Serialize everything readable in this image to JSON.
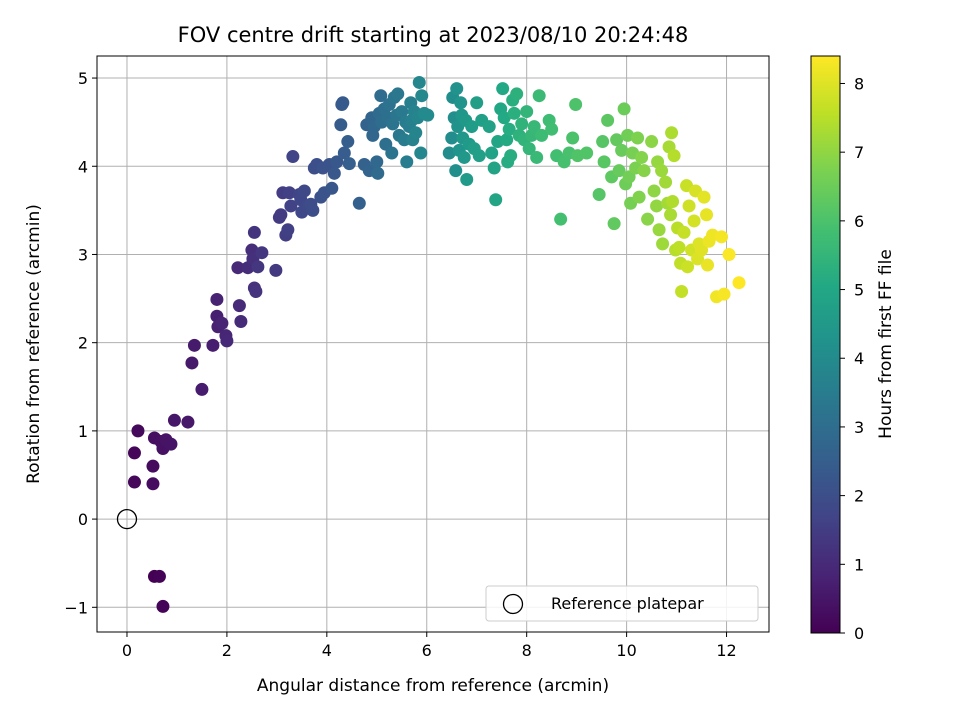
{
  "chart_data": {
    "type": "scatter",
    "title": "FOV centre drift starting at 2023/08/10 20:24:48",
    "xlabel": "Angular distance from reference (arcmin)",
    "ylabel": "Rotation from reference (arcmin)",
    "xlim": [
      -0.6,
      12.85
    ],
    "ylim": [
      -1.28,
      5.25
    ],
    "xticks": [
      0,
      2,
      4,
      6,
      8,
      10,
      12
    ],
    "xtick_labels": [
      "0",
      "2",
      "4",
      "6",
      "8",
      "10",
      "12"
    ],
    "yticks": [
      -1,
      0,
      1,
      2,
      3,
      4,
      5
    ],
    "ytick_labels": [
      "−1",
      "0",
      "1",
      "2",
      "3",
      "4",
      "5"
    ],
    "grid": true,
    "colormap": "viridis",
    "colorbar": {
      "label": "Hours from first FF file",
      "range": [
        0,
        8.4
      ],
      "ticks": [
        0,
        1,
        2,
        3,
        4,
        5,
        6,
        7,
        8
      ],
      "tick_labels": [
        "0",
        "1",
        "2",
        "3",
        "4",
        "5",
        "6",
        "7",
        "8"
      ]
    },
    "legend": {
      "position": "lower-right",
      "entries": [
        {
          "label": "Reference platepar",
          "marker": "open-circle",
          "x": 0,
          "y": 0
        }
      ]
    },
    "points": [
      [
        0.55,
        -0.65
      ],
      [
        0.65,
        -0.65
      ],
      [
        0.72,
        -0.99
      ],
      [
        0.15,
        0.75
      ],
      [
        0.15,
        0.42
      ],
      [
        0.22,
        1.0
      ],
      [
        0.52,
        0.6
      ],
      [
        0.52,
        0.4
      ],
      [
        0.55,
        0.92
      ],
      [
        0.68,
        0.88
      ],
      [
        0.72,
        0.8
      ],
      [
        0.78,
        0.9
      ],
      [
        0.88,
        0.85
      ],
      [
        0.95,
        1.12
      ],
      [
        1.22,
        1.1
      ],
      [
        1.3,
        1.77
      ],
      [
        1.35,
        1.97
      ],
      [
        1.5,
        1.47
      ],
      [
        1.72,
        1.97
      ],
      [
        1.8,
        2.3
      ],
      [
        1.82,
        2.18
      ],
      [
        1.8,
        2.49
      ],
      [
        1.9,
        2.22
      ],
      [
        1.98,
        2.08
      ],
      [
        2.0,
        2.02
      ],
      [
        2.22,
        2.85
      ],
      [
        2.25,
        2.42
      ],
      [
        2.28,
        2.24
      ],
      [
        2.42,
        2.85
      ],
      [
        2.5,
        3.05
      ],
      [
        2.52,
        2.95
      ],
      [
        2.55,
        2.62
      ],
      [
        2.58,
        2.58
      ],
      [
        2.55,
        3.25
      ],
      [
        2.62,
        2.86
      ],
      [
        2.7,
        3.02
      ],
      [
        2.98,
        2.82
      ],
      [
        3.05,
        3.42
      ],
      [
        3.08,
        3.45
      ],
      [
        3.12,
        3.7
      ],
      [
        3.18,
        3.22
      ],
      [
        3.22,
        3.28
      ],
      [
        3.25,
        3.7
      ],
      [
        3.28,
        3.55
      ],
      [
        3.32,
        4.11
      ],
      [
        3.45,
        3.68
      ],
      [
        3.48,
        3.62
      ],
      [
        3.5,
        3.48
      ],
      [
        3.55,
        3.72
      ],
      [
        3.62,
        3.55
      ],
      [
        3.68,
        3.57
      ],
      [
        3.72,
        3.5
      ],
      [
        3.75,
        3.98
      ],
      [
        3.8,
        4.02
      ],
      [
        3.88,
        3.65
      ],
      [
        3.92,
        3.98
      ],
      [
        3.95,
        3.7
      ],
      [
        4.05,
        4.02
      ],
      [
        4.1,
        3.75
      ],
      [
        4.15,
        3.92
      ],
      [
        4.2,
        4.05
      ],
      [
        4.3,
        4.7
      ],
      [
        4.32,
        4.72
      ],
      [
        4.28,
        4.47
      ],
      [
        4.35,
        4.15
      ],
      [
        4.42,
        4.28
      ],
      [
        4.45,
        4.03
      ],
      [
        4.65,
        3.58
      ],
      [
        4.75,
        4.02
      ],
      [
        4.8,
        4.47
      ],
      [
        4.85,
        3.95
      ],
      [
        4.9,
        4.55
      ],
      [
        4.92,
        4.35
      ],
      [
        4.95,
        4.45
      ],
      [
        5.0,
        4.05
      ],
      [
        5.02,
        3.92
      ],
      [
        5.05,
        4.6
      ],
      [
        5.08,
        4.8
      ],
      [
        5.1,
        4.5
      ],
      [
        5.15,
        4.65
      ],
      [
        5.18,
        4.25
      ],
      [
        5.22,
        4.55
      ],
      [
        5.25,
        4.7
      ],
      [
        5.3,
        4.15
      ],
      [
        5.32,
        4.48
      ],
      [
        5.35,
        4.78
      ],
      [
        5.4,
        4.58
      ],
      [
        5.42,
        4.82
      ],
      [
        5.45,
        4.35
      ],
      [
        5.5,
        4.62
      ],
      [
        5.55,
        4.3
      ],
      [
        5.58,
        4.5
      ],
      [
        5.6,
        4.05
      ],
      [
        5.65,
        4.45
      ],
      [
        5.68,
        4.72
      ],
      [
        5.7,
        4.52
      ],
      [
        5.72,
        4.3
      ],
      [
        5.75,
        4.62
      ],
      [
        5.78,
        4.38
      ],
      [
        5.82,
        4.55
      ],
      [
        5.85,
        4.95
      ],
      [
        5.88,
        4.15
      ],
      [
        5.9,
        4.8
      ],
      [
        5.95,
        4.6
      ],
      [
        6.02,
        4.58
      ],
      [
        6.45,
        4.15
      ],
      [
        6.5,
        4.32
      ],
      [
        6.52,
        4.78
      ],
      [
        6.55,
        4.55
      ],
      [
        6.58,
        3.95
      ],
      [
        6.6,
        4.88
      ],
      [
        6.62,
        4.45
      ],
      [
        6.65,
        4.18
      ],
      [
        6.68,
        4.72
      ],
      [
        6.7,
        4.58
      ],
      [
        6.72,
        4.32
      ],
      [
        6.75,
        4.1
      ],
      [
        6.78,
        4.52
      ],
      [
        6.8,
        3.85
      ],
      [
        6.85,
        4.25
      ],
      [
        6.9,
        4.45
      ],
      [
        6.95,
        4.2
      ],
      [
        7.0,
        4.72
      ],
      [
        7.05,
        4.12
      ],
      [
        7.1,
        4.52
      ],
      [
        7.25,
        4.45
      ],
      [
        7.3,
        4.15
      ],
      [
        7.35,
        3.98
      ],
      [
        7.38,
        3.62
      ],
      [
        7.42,
        4.28
      ],
      [
        7.48,
        4.65
      ],
      [
        7.52,
        4.88
      ],
      [
        7.55,
        4.55
      ],
      [
        7.6,
        4.3
      ],
      [
        7.62,
        4.05
      ],
      [
        7.65,
        4.42
      ],
      [
        7.68,
        4.12
      ],
      [
        7.72,
        4.75
      ],
      [
        7.75,
        4.6
      ],
      [
        7.8,
        4.82
      ],
      [
        7.85,
        4.35
      ],
      [
        7.9,
        4.48
      ],
      [
        7.95,
        4.3
      ],
      [
        8.0,
        4.62
      ],
      [
        8.05,
        4.2
      ],
      [
        8.1,
        4.35
      ],
      [
        8.15,
        4.45
      ],
      [
        8.2,
        4.1
      ],
      [
        8.25,
        4.8
      ],
      [
        8.3,
        4.35
      ],
      [
        8.45,
        4.52
      ],
      [
        8.5,
        4.42
      ],
      [
        8.6,
        4.12
      ],
      [
        8.68,
        3.4
      ],
      [
        8.75,
        4.05
      ],
      [
        8.85,
        4.15
      ],
      [
        8.92,
        4.32
      ],
      [
        8.98,
        4.7
      ],
      [
        9.02,
        4.12
      ],
      [
        9.2,
        4.15
      ],
      [
        9.45,
        3.68
      ],
      [
        9.52,
        4.28
      ],
      [
        9.55,
        4.05
      ],
      [
        9.62,
        4.52
      ],
      [
        9.7,
        3.88
      ],
      [
        9.75,
        3.35
      ],
      [
        9.8,
        4.3
      ],
      [
        9.85,
        3.95
      ],
      [
        9.9,
        4.18
      ],
      [
        9.95,
        4.65
      ],
      [
        9.98,
        3.8
      ],
      [
        10.02,
        4.35
      ],
      [
        10.05,
        3.88
      ],
      [
        10.08,
        3.58
      ],
      [
        10.12,
        4.15
      ],
      [
        10.18,
        3.98
      ],
      [
        10.22,
        4.32
      ],
      [
        10.25,
        3.65
      ],
      [
        10.3,
        4.1
      ],
      [
        10.35,
        3.95
      ],
      [
        10.42,
        3.4
      ],
      [
        10.5,
        4.28
      ],
      [
        10.55,
        3.72
      ],
      [
        10.6,
        3.55
      ],
      [
        10.62,
        4.05
      ],
      [
        10.65,
        3.28
      ],
      [
        10.7,
        3.95
      ],
      [
        10.72,
        3.12
      ],
      [
        10.78,
        3.82
      ],
      [
        10.82,
        3.58
      ],
      [
        10.85,
        4.22
      ],
      [
        10.88,
        3.45
      ],
      [
        10.9,
        4.38
      ],
      [
        10.92,
        3.6
      ],
      [
        10.95,
        4.12
      ],
      [
        10.98,
        3.05
      ],
      [
        11.02,
        3.3
      ],
      [
        11.05,
        3.08
      ],
      [
        11.08,
        2.9
      ],
      [
        11.1,
        2.58
      ],
      [
        11.15,
        3.25
      ],
      [
        11.2,
        3.78
      ],
      [
        11.22,
        2.86
      ],
      [
        11.25,
        3.55
      ],
      [
        11.3,
        3.05
      ],
      [
        11.35,
        3.38
      ],
      [
        11.38,
        3.72
      ],
      [
        11.42,
        2.95
      ],
      [
        11.45,
        3.12
      ],
      [
        11.5,
        3.05
      ],
      [
        11.55,
        3.65
      ],
      [
        11.6,
        3.45
      ],
      [
        11.62,
        2.88
      ],
      [
        11.65,
        3.15
      ],
      [
        11.72,
        3.22
      ],
      [
        11.8,
        2.52
      ],
      [
        11.9,
        3.2
      ],
      [
        11.95,
        2.55
      ],
      [
        12.05,
        3.0
      ],
      [
        12.25,
        2.68
      ]
    ]
  }
}
